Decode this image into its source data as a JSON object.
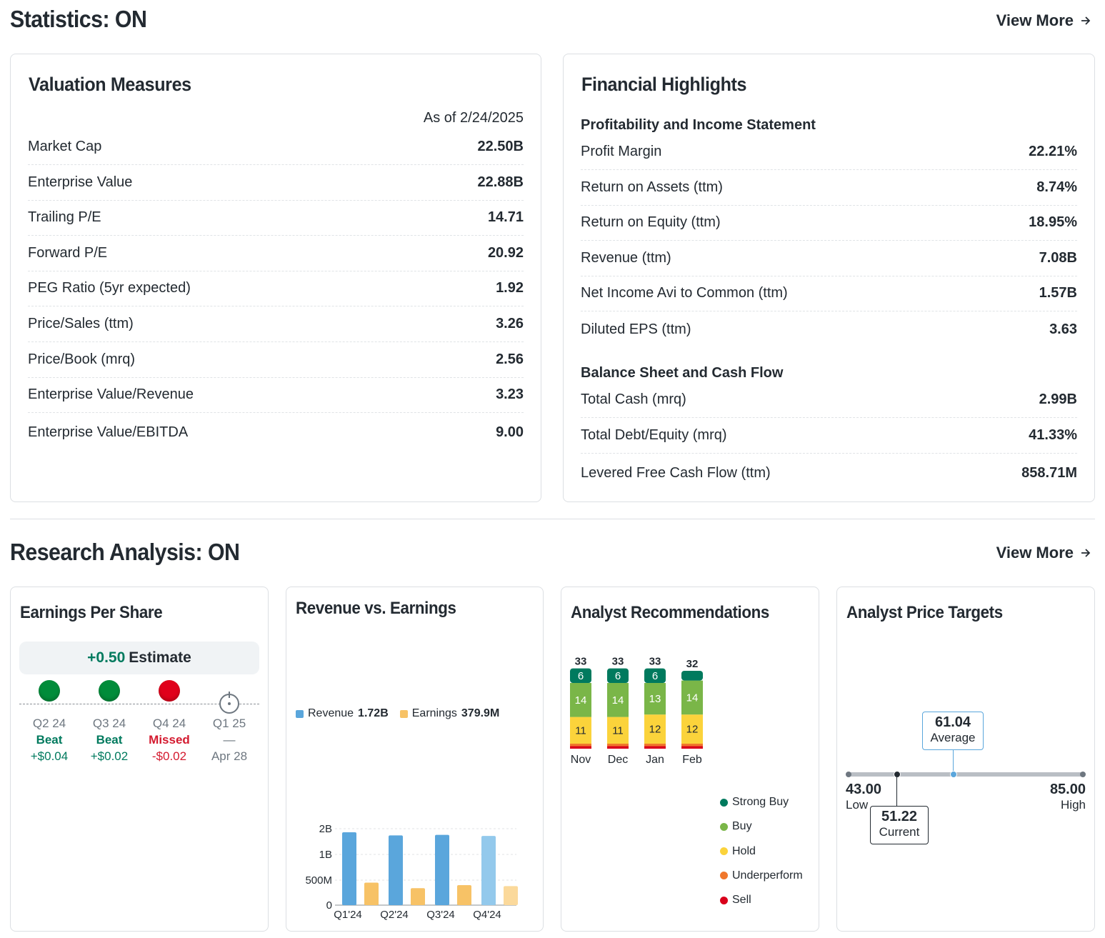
{
  "statistics": {
    "title": "Statistics: ON",
    "view_more": "View More",
    "valuation": {
      "title": "Valuation Measures",
      "as_of": "As of 2/24/2025",
      "rows": [
        {
          "label": "Market Cap",
          "value": "22.50B"
        },
        {
          "label": "Enterprise Value",
          "value": "22.88B"
        },
        {
          "label": "Trailing P/E",
          "value": "14.71"
        },
        {
          "label": "Forward P/E",
          "value": "20.92"
        },
        {
          "label": "PEG Ratio (5yr expected)",
          "value": "1.92"
        },
        {
          "label": "Price/Sales (ttm)",
          "value": "3.26"
        },
        {
          "label": "Price/Book (mrq)",
          "value": "2.56"
        },
        {
          "label": "Enterprise Value/Revenue",
          "value": "3.23"
        },
        {
          "label": "Enterprise Value/EBITDA",
          "value": "9.00"
        }
      ]
    },
    "financial": {
      "title": "Financial Highlights",
      "profitability_title": "Profitability and Income Statement",
      "profitability_rows": [
        {
          "label": "Profit Margin",
          "value": "22.21%"
        },
        {
          "label": "Return on Assets (ttm)",
          "value": "8.74%"
        },
        {
          "label": "Return on Equity (ttm)",
          "value": "18.95%"
        },
        {
          "label": "Revenue (ttm)",
          "value": "7.08B"
        },
        {
          "label": "Net Income Avi to Common (ttm)",
          "value": "1.57B"
        },
        {
          "label": "Diluted EPS (ttm)",
          "value": "3.63"
        }
      ],
      "balance_title": "Balance Sheet and Cash Flow",
      "balance_rows": [
        {
          "label": "Total Cash (mrq)",
          "value": "2.99B"
        },
        {
          "label": "Total Debt/Equity (mrq)",
          "value": "41.33%"
        },
        {
          "label": "Levered Free Cash Flow (ttm)",
          "value": "858.71M"
        }
      ]
    }
  },
  "research": {
    "title": "Research Analysis: ON",
    "view_more": "View More",
    "eps": {
      "title": "Earnings Per Share",
      "estimate_value": "+0.50",
      "estimate_label": "Estimate",
      "quarters": [
        {
          "q": "Q2 24",
          "status": "Beat",
          "change": "+$0.04",
          "color": "#008c3a"
        },
        {
          "q": "Q3 24",
          "status": "Beat",
          "change": "+$0.02",
          "color": "#008c3a"
        },
        {
          "q": "Q4 24",
          "status": "Missed",
          "change": "-$0.02",
          "color": "#e0001b"
        },
        {
          "q": "Q1 25",
          "status": "—",
          "change": "Apr 28",
          "color": ""
        }
      ]
    },
    "rev_earn": {
      "title": "Revenue vs. Earnings",
      "legend_revenue": "Revenue",
      "legend_revenue_value": "1.72B",
      "legend_earnings": "Earnings",
      "legend_earnings_value": "379.9M"
    },
    "recommendations": {
      "title": "Analyst Recommendations",
      "legend": [
        "Strong Buy",
        "Buy",
        "Hold",
        "Underperform",
        "Sell"
      ],
      "colors": {
        "strong_buy": "#007a5e",
        "buy": "#7ab648",
        "hold": "#fbd33b",
        "underperform": "#f0772c",
        "sell": "#d9001b"
      }
    },
    "price_targets": {
      "title": "Analyst Price Targets",
      "average_value": "61.04",
      "average_label": "Average",
      "low_value": "43.00",
      "low_label": "Low",
      "high_value": "85.00",
      "high_label": "High",
      "current_value": "51.22",
      "current_label": "Current",
      "low": 43.0,
      "high": 85.0,
      "average": 61.04,
      "current": 51.22
    }
  },
  "chart_data": [
    {
      "type": "bar",
      "title": "Revenue vs. Earnings",
      "categories": [
        "Q1'24",
        "Q2'24",
        "Q3'24",
        "Q4'24"
      ],
      "series": [
        {
          "name": "Revenue",
          "values": [
            1.86,
            1.74,
            1.76,
            1.72
          ],
          "color": "#5aa6dc"
        },
        {
          "name": "Earnings",
          "values": [
            0.45,
            0.34,
            0.4,
            0.38
          ],
          "color": "#f7c266"
        }
      ],
      "y_ticks": [
        "0",
        "500M",
        "1B",
        "2B"
      ],
      "unit": "B"
    },
    {
      "type": "bar",
      "title": "Analyst Recommendations",
      "stacked": true,
      "categories": [
        "Nov",
        "Dec",
        "Jan",
        "Feb"
      ],
      "totals": [
        "33",
        "33",
        "33",
        "32"
      ],
      "series": [
        {
          "name": "Strong Buy",
          "values": [
            6,
            6,
            6,
            4
          ]
        },
        {
          "name": "Buy",
          "values": [
            14,
            14,
            13,
            14
          ]
        },
        {
          "name": "Hold",
          "values": [
            11,
            11,
            12,
            12
          ]
        },
        {
          "name": "Underperform",
          "values": [
            1,
            1,
            1,
            1
          ]
        },
        {
          "name": "Sell",
          "values": [
            1,
            1,
            1,
            1
          ]
        }
      ],
      "labels": [
        [
          "6",
          "14",
          "11"
        ],
        [
          "6",
          "14",
          "11"
        ],
        [
          "6",
          "13",
          "12"
        ],
        [
          "",
          "14",
          "12"
        ]
      ]
    }
  ]
}
